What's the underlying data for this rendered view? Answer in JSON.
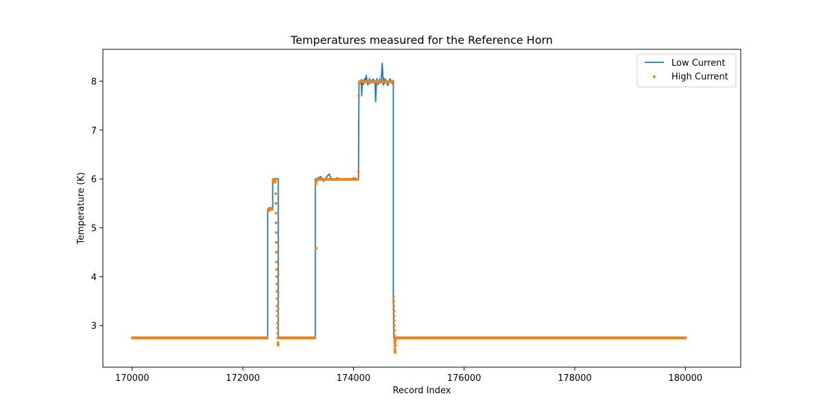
{
  "chart_data": {
    "type": "line",
    "title": "Temperatures measured for the Reference Horn",
    "xlabel": "Record Index",
    "ylabel": "Temperature (K)",
    "xlim": [
      169470,
      181000
    ],
    "ylim": [
      2.1485,
      8.6515
    ],
    "xticks": [
      170000,
      172000,
      174000,
      176000,
      178000,
      180000
    ],
    "yticks": [
      3,
      4,
      5,
      6,
      7,
      8
    ],
    "grid": false,
    "legend_position": "top-right",
    "series": [
      {
        "name": "Low Current",
        "style": "line",
        "color": "#1f77b4",
        "x": [
          170000,
          172450,
          172450,
          172455,
          172540,
          172540,
          172640,
          172640,
          173310,
          173310,
          173330,
          173360,
          173370,
          173400,
          173440,
          173460,
          173500,
          173560,
          173600,
          173650,
          173700,
          173780,
          173860,
          173940,
          174000,
          174080,
          174090,
          174100,
          174120,
          174140,
          174150,
          174160,
          174180,
          174200,
          174210,
          174230,
          174260,
          174290,
          174300,
          174330,
          174360,
          174380,
          174390,
          174400,
          174420,
          174450,
          174470,
          174490,
          174500,
          174520,
          174540,
          174550,
          174560,
          174580,
          174620,
          174660,
          174700,
          174720,
          174720,
          174730,
          180000
        ],
        "y": [
          2.75,
          2.75,
          5.38,
          5.38,
          5.38,
          6.0,
          6.0,
          2.75,
          2.75,
          6.0,
          5.96,
          6.03,
          5.98,
          6.05,
          6.0,
          5.95,
          6.02,
          6.1,
          6.0,
          5.98,
          6.02,
          5.99,
          6.01,
          5.98,
          6.02,
          6.0,
          6.0,
          8.0,
          7.95,
          8.03,
          7.7,
          8.02,
          7.93,
          8.05,
          7.98,
          8.12,
          7.92,
          8.06,
          7.95,
          8.02,
          8.04,
          7.97,
          8.01,
          7.58,
          8.05,
          7.93,
          8.04,
          7.96,
          8.02,
          8.37,
          7.92,
          8.06,
          7.95,
          8.04,
          7.91,
          8.05,
          7.95,
          8.02,
          3.6,
          2.75,
          2.75
        ]
      },
      {
        "name": "High Current",
        "style": "scatter",
        "color": "#ff7f0e",
        "pts": [
          [
            172470,
            5.35
          ],
          [
            172480,
            5.4
          ],
          [
            172490,
            5.38
          ],
          [
            172500,
            5.39
          ],
          [
            172510,
            5.38
          ],
          [
            172520,
            5.4
          ],
          [
            172530,
            5.38
          ],
          [
            172545,
            5.96
          ],
          [
            172550,
            5.95
          ],
          [
            172555,
            5.99
          ],
          [
            172560,
            5.94
          ],
          [
            172565,
            5.98
          ],
          [
            172570,
            6.0
          ],
          [
            172575,
            5.93
          ],
          [
            172580,
            5.97
          ],
          [
            172585,
            5.95
          ],
          [
            172590,
            5.99
          ],
          [
            172595,
            5.7
          ],
          [
            172598,
            5.5
          ],
          [
            172600,
            5.3
          ],
          [
            172602,
            5.1
          ],
          [
            172604,
            4.9
          ],
          [
            172606,
            4.7
          ],
          [
            172608,
            4.5
          ],
          [
            172610,
            4.3
          ],
          [
            172612,
            4.15
          ],
          [
            172614,
            4.0
          ],
          [
            172616,
            3.85
          ],
          [
            172618,
            3.7
          ],
          [
            172620,
            3.55
          ],
          [
            172622,
            3.4
          ],
          [
            172624,
            3.3
          ],
          [
            172626,
            3.2
          ],
          [
            172628,
            3.05
          ],
          [
            172630,
            2.95
          ],
          [
            172632,
            2.85
          ],
          [
            172634,
            2.75
          ],
          [
            172636,
            2.65
          ],
          [
            172638,
            2.6
          ],
          [
            173320,
            5.9
          ],
          [
            173325,
            4.58
          ],
          [
            173330,
            5.95
          ],
          [
            173340,
            6.0
          ],
          [
            174090,
            6.15
          ],
          [
            174095,
            7.7
          ],
          [
            174100,
            7.95
          ],
          [
            174725,
            3.6
          ],
          [
            174728,
            3.5
          ],
          [
            174730,
            3.4
          ],
          [
            174732,
            3.3
          ],
          [
            174734,
            3.2
          ],
          [
            174736,
            3.1
          ],
          [
            174738,
            3.0
          ],
          [
            174740,
            2.9
          ],
          [
            174742,
            2.8
          ],
          [
            174744,
            2.7
          ],
          [
            174746,
            2.65
          ],
          [
            174748,
            2.58
          ],
          [
            174750,
            2.52
          ],
          [
            174752,
            2.48
          ],
          [
            174755,
            2.45
          ],
          [
            174758,
            2.6
          ],
          [
            174760,
            2.7
          ]
        ],
        "segments": [
          {
            "x_start": 170000,
            "x_end": 172440,
            "y": 2.75
          },
          {
            "x_start": 172640,
            "x_end": 173300,
            "y": 2.75
          },
          {
            "x_start": 173350,
            "x_end": 174080,
            "y": 5.99
          },
          {
            "x_start": 174110,
            "x_end": 174715,
            "y": 7.99
          },
          {
            "x_start": 174770,
            "x_end": 180000,
            "y": 2.75
          }
        ]
      }
    ]
  }
}
